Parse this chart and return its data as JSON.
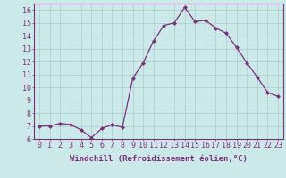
{
  "x": [
    0,
    1,
    2,
    3,
    4,
    5,
    6,
    7,
    8,
    9,
    10,
    11,
    12,
    13,
    14,
    15,
    16,
    17,
    18,
    19,
    20,
    21,
    22,
    23
  ],
  "y": [
    7.0,
    7.0,
    7.2,
    7.1,
    6.7,
    6.1,
    6.8,
    7.1,
    6.9,
    10.7,
    11.9,
    13.6,
    14.8,
    15.0,
    16.2,
    15.1,
    15.2,
    14.6,
    14.2,
    13.1,
    11.9,
    10.8,
    9.6,
    9.3
  ],
  "line_color": "#7b2f7b",
  "marker": "D",
  "marker_size": 2.0,
  "bg_color": "#cce9e9",
  "grid_color": "#aacccc",
  "xlabel": "Windchill (Refroidissement éolien,°C)",
  "ylim": [
    6,
    16.5
  ],
  "xlim": [
    -0.5,
    23.5
  ],
  "yticks": [
    6,
    7,
    8,
    9,
    10,
    11,
    12,
    13,
    14,
    15,
    16
  ],
  "xticks": [
    0,
    1,
    2,
    3,
    4,
    5,
    6,
    7,
    8,
    9,
    10,
    11,
    12,
    13,
    14,
    15,
    16,
    17,
    18,
    19,
    20,
    21,
    22,
    23
  ],
  "axis_color": "#7b2f7b",
  "tick_color": "#7b2f7b",
  "label_fontsize": 6.5,
  "tick_fontsize": 6.0,
  "linewidth": 0.9
}
